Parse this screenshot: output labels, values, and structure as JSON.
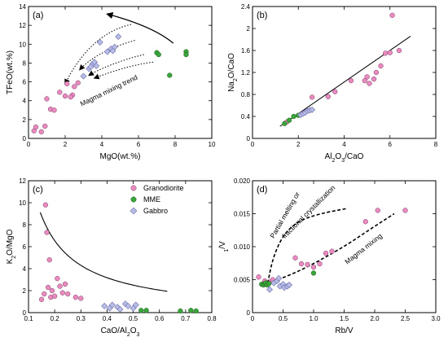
{
  "colors": {
    "granodiorite": "#e98bc0",
    "mme": "#3aa53a",
    "gabbro": "#b8bde8",
    "gabbro_stroke": "#6c6fa8",
    "line": "#000000"
  },
  "legend": {
    "items": [
      {
        "label": "Granodiorite",
        "marker": "circle",
        "color_key": "granodiorite"
      },
      {
        "label": "MME",
        "marker": "circle",
        "color_key": "mme"
      },
      {
        "label": "Gabbro",
        "marker": "diamond",
        "color_key": "gabbro"
      }
    ]
  },
  "chart_data": [
    {
      "id": "a",
      "type": "scatter",
      "panel_label": "(a)",
      "xlabel": "MgO(wt.%)",
      "ylabel": "TFeO(wt.%)",
      "xlim": [
        0,
        10
      ],
      "ylim": [
        0,
        14
      ],
      "xticks": [
        0,
        2,
        4,
        6,
        8,
        10
      ],
      "yticks": [
        0,
        2,
        4,
        6,
        8,
        10,
        12,
        14
      ],
      "xtick_labels": [
        "0",
        "2",
        "4",
        "6",
        "8",
        "10"
      ],
      "ytick_labels": [
        "0",
        "2",
        "4",
        "6",
        "8",
        "10",
        "12",
        "14"
      ],
      "series": [
        {
          "color_key": "granodiorite",
          "marker": "circle",
          "points": [
            [
              0.3,
              0.8
            ],
            [
              0.4,
              1.2
            ],
            [
              0.7,
              0.7
            ],
            [
              0.9,
              1.3
            ],
            [
              1.0,
              4.2
            ],
            [
              1.2,
              3.1
            ],
            [
              1.4,
              3.0
            ],
            [
              1.7,
              4.9
            ],
            [
              2.0,
              4.5
            ],
            [
              2.1,
              5.8
            ],
            [
              2.4,
              4.6
            ],
            [
              2.5,
              5.5
            ],
            [
              2.7,
              5.9
            ],
            [
              2.3,
              4.4
            ]
          ]
        },
        {
          "color_key": "gabbro",
          "marker": "diamond",
          "points": [
            [
              3.0,
              6.6
            ],
            [
              3.3,
              7.4
            ],
            [
              3.5,
              7.9
            ],
            [
              3.6,
              8.1
            ],
            [
              3.4,
              7.6
            ],
            [
              3.7,
              7.7
            ],
            [
              3.9,
              10.2
            ],
            [
              4.3,
              9.2
            ],
            [
              4.5,
              9.5
            ],
            [
              4.6,
              9.3
            ],
            [
              4.7,
              9.7
            ],
            [
              4.9,
              10.8
            ]
          ]
        },
        {
          "color_key": "mme",
          "marker": "circle",
          "points": [
            [
              7.0,
              9.1
            ],
            [
              7.1,
              8.9
            ],
            [
              7.7,
              6.7
            ],
            [
              8.6,
              9.2
            ],
            [
              8.6,
              8.9
            ]
          ]
        }
      ],
      "arrows": [
        {
          "style": "solid",
          "points": [
            [
              7.9,
              10.1
            ],
            [
              6.8,
              11.9
            ],
            [
              4.3,
              13.2
            ]
          ]
        },
        {
          "style": "dotted",
          "points": [
            [
              5.6,
              12.1
            ],
            [
              4.0,
              11.4
            ],
            [
              2.8,
              9.0
            ],
            [
              2.0,
              5.8
            ]
          ]
        },
        {
          "style": "dotted",
          "points": [
            [
              5.8,
              10.4
            ],
            [
              4.3,
              9.6
            ],
            [
              3.3,
              8.4
            ],
            [
              2.8,
              7.3
            ]
          ]
        },
        {
          "style": "dotted",
          "points": [
            [
              6.3,
              8.9
            ],
            [
              5.0,
              8.3
            ],
            [
              3.8,
              7.3
            ],
            [
              3.3,
              6.7
            ]
          ]
        },
        {
          "style": "dotted",
          "points": [
            [
              6.8,
              8.1
            ],
            [
              5.6,
              7.8
            ],
            [
              4.4,
              7.0
            ],
            [
              3.6,
              6.4
            ]
          ]
        }
      ],
      "annotations": [
        {
          "text": "Magma mixing trend",
          "x": 2.9,
          "y": 3.4,
          "rotate": -26
        }
      ]
    },
    {
      "id": "b",
      "type": "scatter",
      "panel_label": "(b)",
      "xlabel": "Al2O3/CaO",
      "ylabel": "Na2O/CaO",
      "xlim": [
        0,
        8
      ],
      "ylim": [
        0,
        2.4
      ],
      "xticks": [
        0,
        2,
        4,
        6,
        8
      ],
      "yticks": [
        0,
        0.4,
        0.8,
        1.2,
        1.6,
        2.0,
        2.4
      ],
      "xtick_labels": [
        "0",
        "2",
        "4",
        "6",
        "8"
      ],
      "ytick_labels": [
        "0",
        "0.4",
        "0.8",
        "1.2",
        "1.6",
        "2",
        "2.4"
      ],
      "series": [
        {
          "color_key": "granodiorite",
          "marker": "circle",
          "points": [
            [
              1.5,
              0.3
            ],
            [
              2.6,
              0.75
            ],
            [
              3.3,
              0.76
            ],
            [
              3.6,
              0.85
            ],
            [
              4.3,
              1.05
            ],
            [
              4.9,
              1.05
            ],
            [
              5.0,
              1.12
            ],
            [
              5.1,
              1.0
            ],
            [
              5.3,
              1.08
            ],
            [
              5.4,
              1.2
            ],
            [
              5.6,
              1.32
            ],
            [
              5.8,
              1.55
            ],
            [
              6.0,
              1.56
            ],
            [
              6.1,
              2.24
            ],
            [
              6.4,
              1.6
            ]
          ]
        },
        {
          "color_key": "mme",
          "marker": "circle",
          "points": [
            [
              1.4,
              0.27
            ],
            [
              1.6,
              0.33
            ],
            [
              1.8,
              0.4
            ],
            [
              2.0,
              0.42
            ]
          ]
        },
        {
          "color_key": "gabbro",
          "marker": "diamond",
          "points": [
            [
              2.1,
              0.43
            ],
            [
              2.2,
              0.45
            ],
            [
              2.3,
              0.47
            ],
            [
              2.4,
              0.5
            ],
            [
              2.5,
              0.51
            ],
            [
              2.6,
              0.52
            ]
          ]
        }
      ],
      "lines": [
        {
          "style": "solid",
          "points": [
            [
              1.2,
              0.22
            ],
            [
              6.9,
              1.86
            ]
          ]
        }
      ],
      "annotations": []
    },
    {
      "id": "c",
      "type": "scatter",
      "panel_label": "(c)",
      "xlabel": "CaO/Al2O3",
      "ylabel": "K2O/MgO",
      "xlim": [
        0.1,
        0.8
      ],
      "ylim": [
        0,
        12
      ],
      "xticks": [
        0.1,
        0.2,
        0.3,
        0.4,
        0.5,
        0.6,
        0.7,
        0.8
      ],
      "yticks": [
        0,
        2,
        4,
        6,
        8,
        10,
        12
      ],
      "xtick_labels": [
        "0.1",
        "0.2",
        "0.3",
        "0.4",
        "0.5",
        "0.6",
        "0.7",
        "0.8"
      ],
      "ytick_labels": [
        "0",
        "2",
        "4",
        "6",
        "8",
        "10",
        "12"
      ],
      "series": [
        {
          "color_key": "granodiorite",
          "marker": "circle",
          "points": [
            [
              0.15,
              1.2
            ],
            [
              0.16,
              1.7
            ],
            [
              0.165,
              9.8
            ],
            [
              0.17,
              7.3
            ],
            [
              0.175,
              2.3
            ],
            [
              0.18,
              4.8
            ],
            [
              0.185,
              1.4
            ],
            [
              0.19,
              2.0
            ],
            [
              0.2,
              1.5
            ],
            [
              0.21,
              3.1
            ],
            [
              0.22,
              2.4
            ],
            [
              0.23,
              1.8
            ],
            [
              0.24,
              2.6
            ],
            [
              0.25,
              1.7
            ],
            [
              0.28,
              1.4
            ],
            [
              0.3,
              1.3
            ]
          ]
        },
        {
          "color_key": "gabbro",
          "marker": "diamond",
          "points": [
            [
              0.39,
              0.6
            ],
            [
              0.41,
              0.4
            ],
            [
              0.42,
              0.7
            ],
            [
              0.44,
              0.5
            ],
            [
              0.45,
              0.3
            ],
            [
              0.47,
              0.8
            ],
            [
              0.48,
              0.6
            ],
            [
              0.5,
              0.4
            ],
            [
              0.51,
              0.7
            ]
          ]
        },
        {
          "color_key": "mme",
          "marker": "circle",
          "points": [
            [
              0.53,
              0.2
            ],
            [
              0.55,
              0.2
            ],
            [
              0.68,
              0.15
            ],
            [
              0.72,
              0.2
            ],
            [
              0.74,
              0.15
            ]
          ]
        }
      ],
      "curves": [
        {
          "style": "solid",
          "function": "hyperbola",
          "a": 1.35,
          "b": -0.2,
          "x_range": [
            0.145,
            0.63
          ]
        }
      ],
      "annotations": []
    },
    {
      "id": "d",
      "type": "scatter",
      "panel_label": "(d)",
      "xlabel": "Rb/V",
      "ylabel": "1/V",
      "xlim": [
        0,
        3.0
      ],
      "ylim": [
        0,
        0.02
      ],
      "xticks": [
        0,
        0.5,
        1.0,
        1.5,
        2.0,
        2.5,
        3.0
      ],
      "yticks": [
        0,
        0.005,
        0.01,
        0.015,
        0.02
      ],
      "xtick_labels": [
        "0",
        "0.5",
        "1.0",
        "1.5",
        "2.0",
        "2.5",
        "3.0"
      ],
      "ytick_labels": [
        "0",
        "0.005",
        "0.010",
        "0.015",
        "0.020"
      ],
      "series": [
        {
          "color_key": "granodiorite",
          "marker": "circle",
          "points": [
            [
              0.1,
              0.0054
            ],
            [
              0.2,
              0.0048
            ],
            [
              0.3,
              0.0047
            ],
            [
              0.33,
              0.005
            ],
            [
              0.7,
              0.0083
            ],
            [
              0.8,
              0.0074
            ],
            [
              0.9,
              0.0073
            ],
            [
              1.0,
              0.0069
            ],
            [
              1.1,
              0.0074
            ],
            [
              1.2,
              0.009
            ],
            [
              1.3,
              0.0093
            ],
            [
              1.85,
              0.0138
            ],
            [
              2.05,
              0.0155
            ],
            [
              2.5,
              0.0155
            ]
          ]
        },
        {
          "color_key": "mme",
          "marker": "circle",
          "points": [
            [
              0.15,
              0.0043
            ],
            [
              0.18,
              0.0042
            ],
            [
              0.2,
              0.0044
            ],
            [
              0.22,
              0.0045
            ],
            [
              0.24,
              0.0042
            ],
            [
              0.27,
              0.0044
            ],
            [
              1.0,
              0.006
            ]
          ]
        },
        {
          "color_key": "gabbro",
          "marker": "diamond",
          "points": [
            [
              0.28,
              0.0035
            ],
            [
              0.35,
              0.0045
            ],
            [
              0.4,
              0.0048
            ],
            [
              0.43,
              0.0052
            ],
            [
              0.45,
              0.004
            ],
            [
              0.5,
              0.0043
            ],
            [
              0.52,
              0.0038
            ],
            [
              0.57,
              0.004
            ],
            [
              0.6,
              0.0042
            ]
          ]
        }
      ],
      "curves": [
        {
          "style": "dashed",
          "points": [
            [
              0.25,
              0.0045
            ],
            [
              0.33,
              0.0082
            ],
            [
              0.5,
              0.0118
            ],
            [
              0.75,
              0.0139
            ],
            [
              1.1,
              0.015
            ],
            [
              1.55,
              0.0158
            ]
          ]
        },
        {
          "style": "dashed",
          "points": [
            [
              0.25,
              0.0045
            ],
            [
              0.65,
              0.0058
            ],
            [
              1.1,
              0.0079
            ],
            [
              1.55,
              0.0103
            ],
            [
              1.95,
              0.0128
            ],
            [
              2.32,
              0.015
            ]
          ]
        }
      ],
      "annotations": [
        {
          "text": "Partial melting or",
          "x": 0.35,
          "y": 0.0112,
          "rotate": -60
        },
        {
          "text": "fractional crystallization",
          "x": 0.53,
          "y": 0.0112,
          "rotate": -45
        },
        {
          "text": "Magma mixing",
          "x": 1.55,
          "y": 0.0073,
          "rotate": -38
        }
      ]
    }
  ]
}
